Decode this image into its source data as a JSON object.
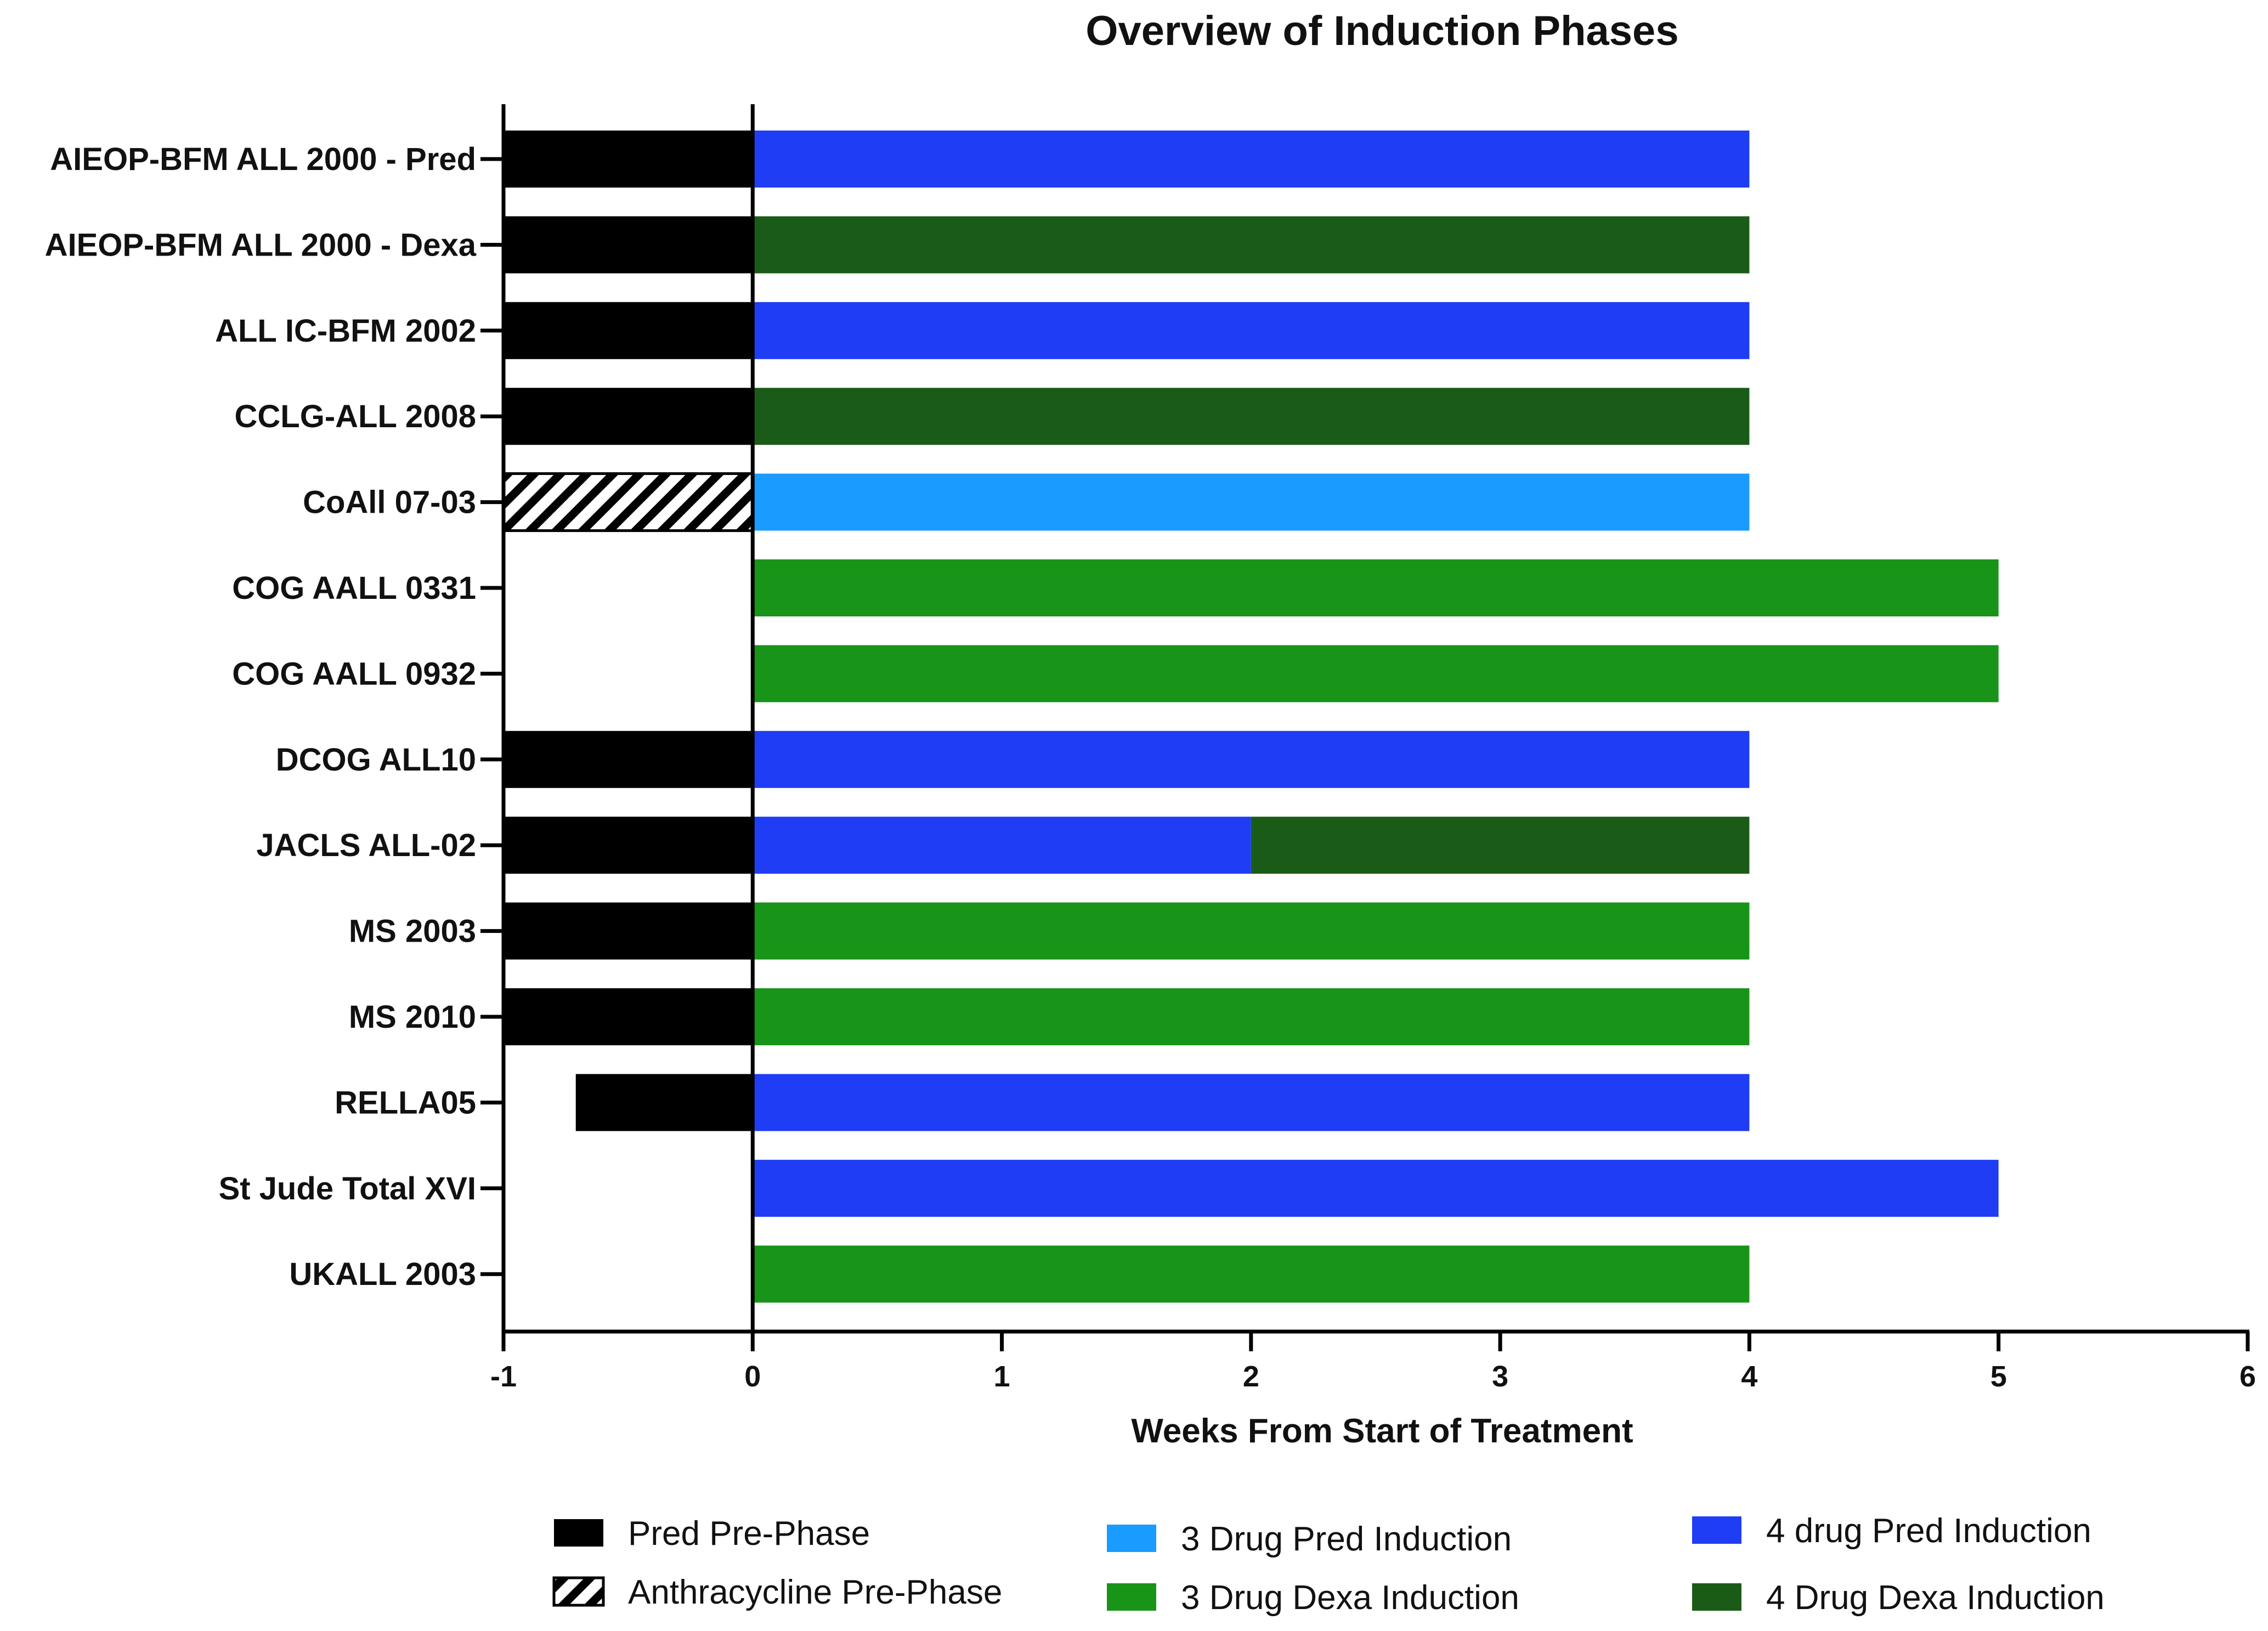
{
  "chart_data": {
    "type": "bar",
    "orientation": "horizontal",
    "stacked": true,
    "title": "Overview of Induction Phases",
    "xlabel": "Weeks From Start of Treatment",
    "ylabel": "",
    "xlim": [
      -1,
      6
    ],
    "xticks": [
      -1,
      0,
      1,
      2,
      3,
      4,
      5,
      6
    ],
    "categories": [
      "AIEOP-BFM ALL 2000 - Pred",
      "AIEOP-BFM ALL 2000 - Dexa",
      "ALL IC-BFM 2002",
      "CCLG-ALL 2008",
      "CoAll 07-03",
      "COG AALL 0331",
      "COG AALL 0932",
      "DCOG ALL10",
      "JACLS ALL-02",
      "MS 2003",
      "MS 2010",
      "RELLA05",
      "St Jude Total XVI",
      "UKALL 2003"
    ],
    "series": [
      {
        "name": "Pred Pre-Phase",
        "color": "#000000",
        "pattern": "solid",
        "segments": [
          [
            -1,
            0
          ],
          [
            -1,
            0
          ],
          [
            -1,
            0
          ],
          [
            -1,
            0
          ],
          null,
          null,
          null,
          [
            -1,
            0
          ],
          [
            -1,
            0
          ],
          [
            -1,
            0
          ],
          [
            -1,
            0
          ],
          [
            -0.71,
            0
          ],
          null,
          null
        ]
      },
      {
        "name": "Anthracycline Pre-Phase",
        "color": "#000000",
        "pattern": "hatch",
        "segments": [
          null,
          null,
          null,
          null,
          [
            -1,
            0
          ],
          null,
          null,
          null,
          null,
          null,
          null,
          null,
          null,
          null
        ]
      },
      {
        "name": "3 Drug Pred Induction",
        "color": "#1a9bff",
        "pattern": "solid",
        "segments": [
          null,
          null,
          null,
          null,
          [
            0,
            4
          ],
          null,
          null,
          null,
          null,
          null,
          null,
          null,
          null,
          null
        ]
      },
      {
        "name": "3 Drug Dexa Induction",
        "color": "#189418",
        "pattern": "solid",
        "segments": [
          null,
          null,
          null,
          null,
          null,
          [
            0,
            5
          ],
          [
            0,
            5
          ],
          null,
          null,
          [
            0,
            4
          ],
          [
            0,
            4
          ],
          null,
          null,
          [
            0,
            4
          ]
        ]
      },
      {
        "name": "4 drug Pred Induction",
        "color": "#1f3df5",
        "pattern": "solid",
        "segments": [
          [
            0,
            4
          ],
          null,
          [
            0,
            4
          ],
          null,
          null,
          null,
          null,
          [
            0,
            4
          ],
          [
            0,
            2
          ],
          null,
          null,
          [
            0,
            4
          ],
          [
            0,
            5
          ],
          null
        ]
      },
      {
        "name": "4 Drug Dexa Induction",
        "color": "#1a5c17",
        "pattern": "solid",
        "segments": [
          null,
          [
            0,
            4
          ],
          null,
          [
            0,
            4
          ],
          null,
          null,
          null,
          null,
          [
            2,
            4
          ],
          null,
          null,
          null,
          null,
          null
        ]
      }
    ],
    "legend_position": "bottom",
    "grid": false
  }
}
